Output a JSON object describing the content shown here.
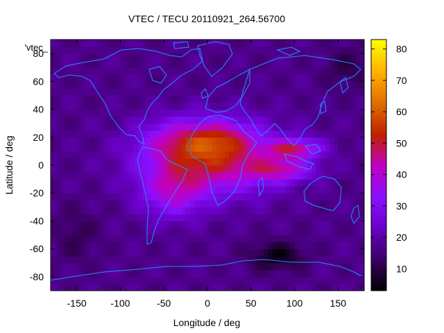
{
  "chart_data": {
    "type": "heatmap",
    "title": "VTEC / TECU 20110921_264.56700",
    "xlabel": "Longitude / deg",
    "ylabel": "Latitude / deg",
    "xlim": [
      -180,
      180
    ],
    "ylim": [
      -90,
      90
    ],
    "clim": [
      3,
      83
    ],
    "x_ticks": [
      -150,
      -100,
      -50,
      0,
      50,
      100,
      150
    ],
    "y_ticks": [
      -80,
      -60,
      -40,
      -20,
      0,
      20,
      40,
      60,
      80
    ],
    "colorbar_ticks": [
      10,
      20,
      30,
      40,
      50,
      60,
      70,
      80
    ],
    "legend_entry": "'vtec_",
    "colormap": [
      "#000000",
      "#3a0060",
      "#6a00c8",
      "#8a10ff",
      "#c000c0",
      "#c02000",
      "#e07000",
      "#ffb000",
      "#ffff00"
    ],
    "coastline_color": "#1e90ff",
    "features": [
      {
        "lon": 5,
        "lat": 5,
        "sigma_lon": 75,
        "sigma_lat": 24,
        "amp": 34
      },
      {
        "lon": -35,
        "lat": 18,
        "sigma_lon": 40,
        "sigma_lat": 14,
        "amp": 12
      },
      {
        "lon": 15,
        "lat": 20,
        "sigma_lon": 35,
        "sigma_lat": 12,
        "amp": 14
      },
      {
        "lon": -40,
        "lat": -20,
        "sigma_lon": 35,
        "sigma_lat": 18,
        "amp": 18
      },
      {
        "lon": 100,
        "lat": 12,
        "sigma_lon": 30,
        "sigma_lat": 7,
        "amp": 26
      },
      {
        "lon": 85,
        "lat": -3,
        "sigma_lon": 35,
        "sigma_lat": 8,
        "amp": 20
      },
      {
        "lon": 80,
        "lat": -65,
        "sigma_lon": 30,
        "sigma_lat": 10,
        "amp": -12
      },
      {
        "lon": -150,
        "lat": -50,
        "sigma_lon": 25,
        "sigma_lat": 20,
        "amp": -5
      },
      {
        "lon": 160,
        "lat": 70,
        "sigma_lon": 25,
        "sigma_lat": 15,
        "amp": -6
      }
    ],
    "base_value": 17
  }
}
